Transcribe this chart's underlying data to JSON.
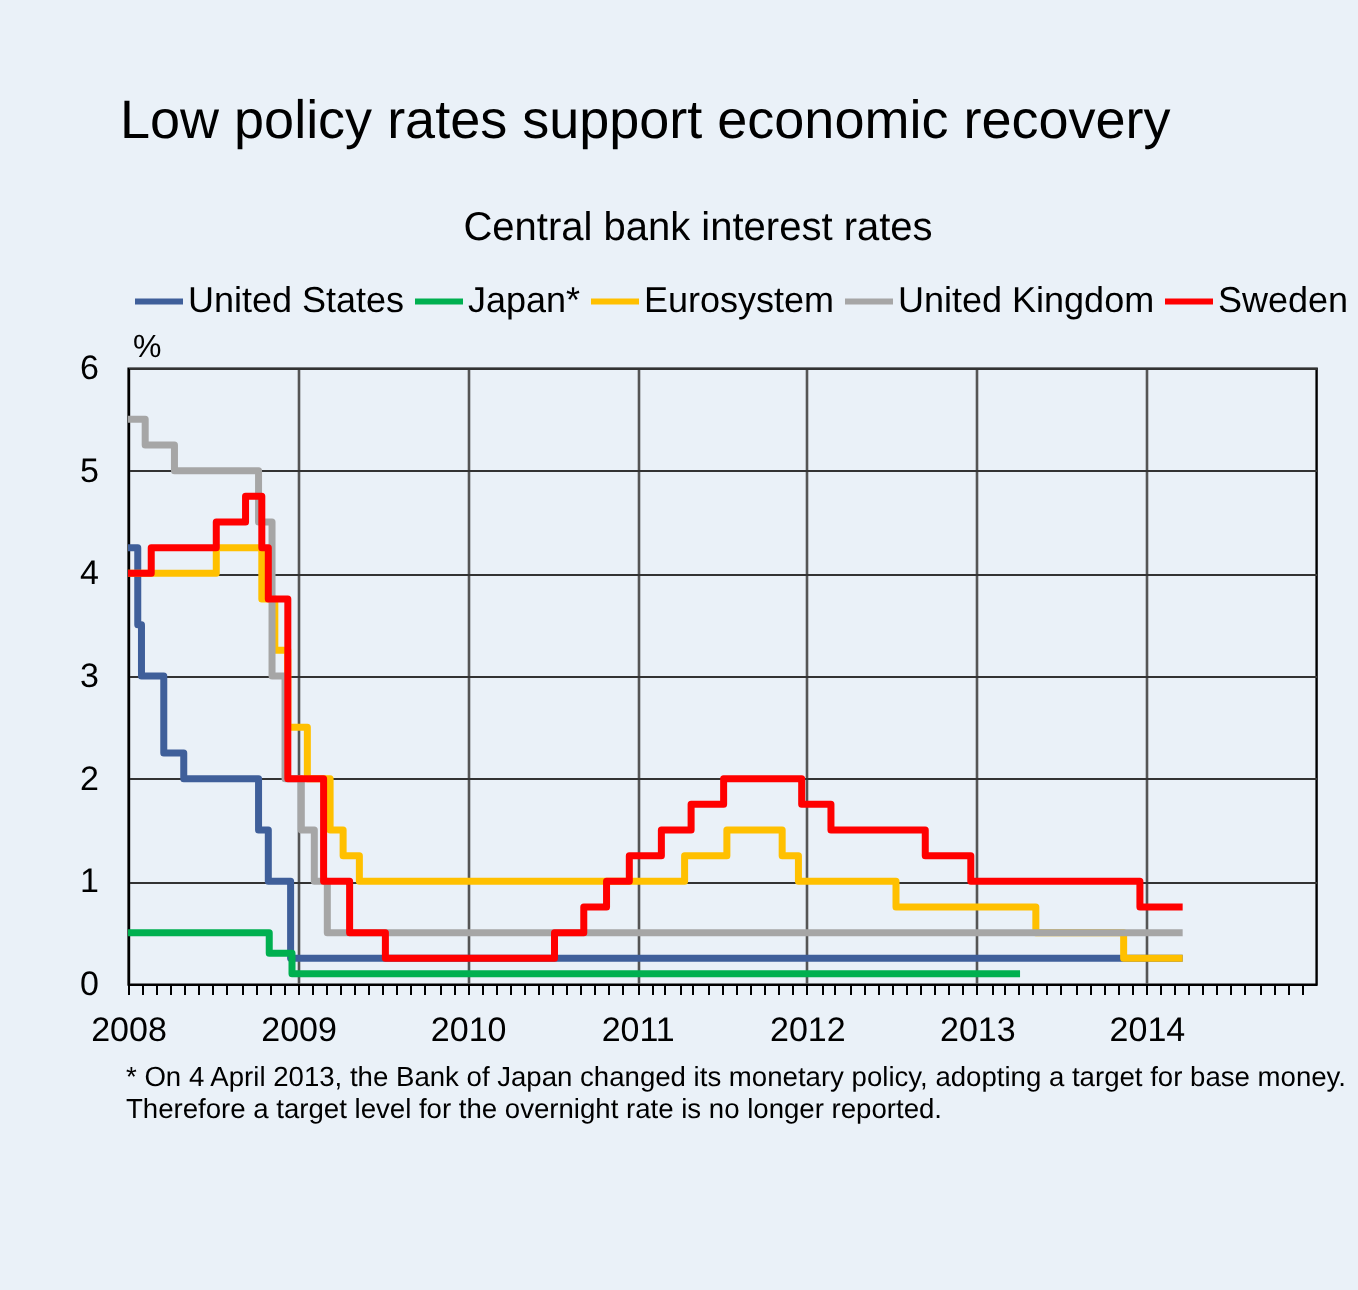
{
  "chart_data": {
    "type": "step",
    "title": "Low policy rates support economic recovery",
    "subtitle": "Central bank interest rates",
    "ylabel": "%",
    "xlim": [
      "2008-01-01",
      "2015-01-01"
    ],
    "xticks": [
      "2008",
      {
        "value": "2008-02",
        "label": null
      },
      {
        "value": "2008-03",
        "label": null
      },
      {
        "value": "2008-04",
        "label": null
      },
      {
        "value": "2008-05",
        "label": null
      },
      {
        "value": "2008-06",
        "label": null
      },
      {
        "value": "2008-07",
        "label": null
      },
      {
        "value": "2008-08",
        "label": null
      },
      {
        "value": "2008-09",
        "label": null
      },
      {
        "value": "2008-10",
        "label": null
      },
      {
        "value": "2008-11",
        "label": null
      },
      {
        "value": "2008-12",
        "label": null
      },
      "2009",
      {
        "value": "2009-02",
        "label": null
      },
      {
        "value": "2009-03",
        "label": null
      },
      {
        "value": "2009-04",
        "label": null
      },
      {
        "value": "2009-05",
        "label": null
      },
      {
        "value": "2009-06",
        "label": null
      },
      {
        "value": "2009-07",
        "label": null
      },
      {
        "value": "2009-08",
        "label": null
      },
      {
        "value": "2009-09",
        "label": null
      },
      {
        "value": "2009-10",
        "label": null
      },
      {
        "value": "2009-11",
        "label": null
      },
      {
        "value": "2009-12",
        "label": null
      },
      "2010",
      {
        "value": "2010-02",
        "label": null
      },
      {
        "value": "2010-03",
        "label": null
      },
      {
        "value": "2010-04",
        "label": null
      },
      {
        "value": "2010-05",
        "label": null
      },
      {
        "value": "2010-06",
        "label": null
      },
      {
        "value": "2010-07",
        "label": null
      },
      {
        "value": "2010-08",
        "label": null
      },
      {
        "value": "2010-09",
        "label": null
      },
      {
        "value": "2010-10",
        "label": null
      },
      {
        "value": "2010-11",
        "label": null
      },
      {
        "value": "2010-12",
        "label": null
      },
      "2011",
      {
        "value": "2011-02",
        "label": null
      },
      {
        "value": "2011-03",
        "label": null
      },
      {
        "value": "2011-04",
        "label": null
      },
      {
        "value": "2011-05",
        "label": null
      },
      {
        "value": "2011-06",
        "label": null
      },
      {
        "value": "2011-07",
        "label": null
      },
      {
        "value": "2011-08",
        "label": null
      },
      {
        "value": "2011-09",
        "label": null
      },
      {
        "value": "2011-10",
        "label": null
      },
      {
        "value": "2011-11",
        "label": null
      },
      {
        "value": "2011-12",
        "label": null
      },
      "2012",
      {
        "value": "2012-02",
        "label": null
      },
      {
        "value": "2012-03",
        "label": null
      },
      {
        "value": "2012-04",
        "label": null
      },
      {
        "value": "2012-05",
        "label": null
      },
      {
        "value": "2012-06",
        "label": null
      },
      {
        "value": "2012-07",
        "label": null
      },
      {
        "value": "2012-08",
        "label": null
      },
      {
        "value": "2012-09",
        "label": null
      },
      {
        "value": "2012-10",
        "label": null
      },
      {
        "value": "2012-11",
        "label": null
      },
      {
        "value": "2012-12",
        "label": null
      },
      "2013",
      {
        "value": "2013-02",
        "label": null
      },
      {
        "value": "2013-03",
        "label": null
      },
      {
        "value": "2013-04",
        "label": null
      },
      {
        "value": "2013-05",
        "label": null
      },
      {
        "value": "2013-06",
        "label": null
      },
      {
        "value": "2013-07",
        "label": null
      },
      {
        "value": "2013-08",
        "label": null
      },
      {
        "value": "2013-09",
        "label": null
      },
      {
        "value": "2013-10",
        "label": null
      },
      {
        "value": "2013-11",
        "label": null
      },
      {
        "value": "2013-12",
        "label": null
      },
      "2014",
      {
        "value": "2014-02",
        "label": null
      },
      {
        "value": "2014-03",
        "label": null
      },
      {
        "value": "2014-04",
        "label": null
      },
      {
        "value": "2014-05",
        "label": null
      },
      {
        "value": "2014-06",
        "label": null
      },
      {
        "value": "2014-07",
        "label": null
      },
      {
        "value": "2014-08",
        "label": null
      },
      {
        "value": "2014-09",
        "label": null
      },
      {
        "value": "2014-10",
        "label": null
      },
      {
        "value": "2014-11",
        "label": null
      },
      {
        "value": "2014-12",
        "label": null
      }
    ],
    "ylim": [
      0,
      6
    ],
    "yticks": [
      0,
      1,
      2,
      3,
      4,
      5,
      6
    ],
    "grid": true,
    "legend": "top",
    "series": [
      {
        "name": "United States",
        "color": "#3f5f9a",
        "x": [
          "2008-01-01",
          "2008-01-22",
          "2008-01-30",
          "2008-03-18",
          "2008-04-30",
          "2008-10-08",
          "2008-10-29",
          "2008-12-16",
          "2014-03-20"
        ],
        "values": [
          4.25,
          3.5,
          3.0,
          2.25,
          2.0,
          1.5,
          1.0,
          0.25,
          0.25
        ]
      },
      {
        "name": "Japan*",
        "color": "#00b050",
        "x": [
          "2008-01-01",
          "2008-10-31",
          "2008-12-19",
          "2013-04-04"
        ],
        "values": [
          0.5,
          0.3,
          0.1,
          0.1
        ]
      },
      {
        "name": "Eurosystem",
        "color": "#ffc000",
        "x": [
          "2008-01-01",
          "2008-07-09",
          "2008-10-15",
          "2008-11-12",
          "2008-12-10",
          "2009-01-21",
          "2009-03-11",
          "2009-04-08",
          "2009-05-13",
          "2011-04-13",
          "2011-07-13",
          "2011-11-09",
          "2011-12-14",
          "2012-07-11",
          "2013-05-08",
          "2013-11-13",
          "2014-03-20"
        ],
        "values": [
          4.0,
          4.25,
          3.75,
          3.25,
          2.5,
          2.0,
          1.5,
          1.25,
          1.0,
          1.25,
          1.5,
          1.25,
          1.0,
          0.75,
          0.5,
          0.25,
          0.25
        ]
      },
      {
        "name": "United Kingdom",
        "color": "#a6a6a6",
        "x": [
          "2008-01-01",
          "2008-02-07",
          "2008-04-10",
          "2008-10-08",
          "2008-11-06",
          "2008-12-04",
          "2009-01-08",
          "2009-02-05",
          "2009-03-05",
          "2014-03-20"
        ],
        "values": [
          5.5,
          5.25,
          5.0,
          4.5,
          3.0,
          2.0,
          1.5,
          1.0,
          0.5,
          0.5
        ]
      },
      {
        "name": "Sweden",
        "color": "#ff0000",
        "x": [
          "2008-01-01",
          "2008-02-20",
          "2008-07-09",
          "2008-09-10",
          "2008-10-15",
          "2008-10-29",
          "2008-12-10",
          "2009-02-25",
          "2009-04-22",
          "2009-07-08",
          "2010-07-07",
          "2010-09-08",
          "2010-10-27",
          "2010-12-15",
          "2011-02-22",
          "2011-04-27",
          "2011-07-06",
          "2011-12-21",
          "2012-02-22",
          "2012-09-12",
          "2012-12-19",
          "2013-12-18",
          "2014-03-20"
        ],
        "values": [
          4.0,
          4.25,
          4.5,
          4.75,
          4.25,
          3.75,
          2.0,
          1.0,
          0.5,
          0.25,
          0.5,
          0.75,
          1.0,
          1.25,
          1.5,
          1.75,
          2.0,
          1.75,
          1.5,
          1.25,
          1.0,
          0.75,
          0.75
        ]
      }
    ],
    "annotations": [
      "* On 4 April 2013, the Bank of Japan changed its monetary policy, adopting a target for base money. Therefore a target level for the overnight rate is no longer reported."
    ]
  }
}
